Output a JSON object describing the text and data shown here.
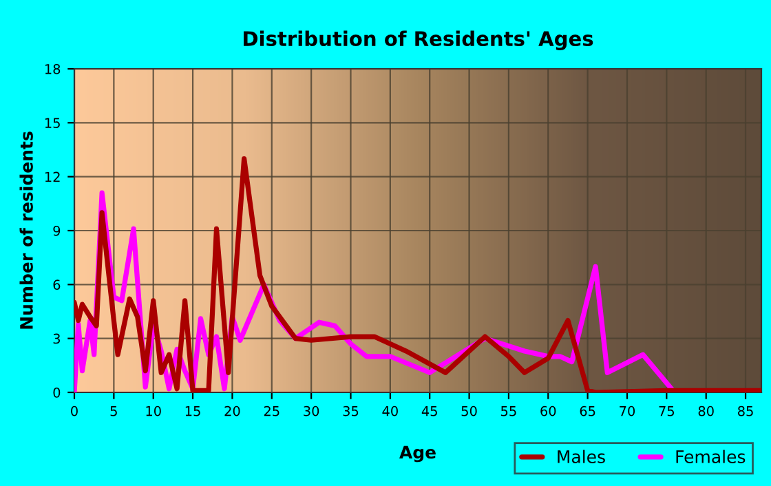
{
  "chart_data": {
    "type": "line",
    "title": "Distribution of Residents' Ages",
    "xlabel": "Age",
    "ylabel": "Number of residents",
    "x": [
      0,
      0.5,
      1,
      2,
      2.8,
      3.5,
      5,
      5.5,
      7,
      8,
      9,
      10,
      11,
      12,
      13,
      14,
      15,
      16,
      17,
      18,
      19.5,
      21.5,
      23.5,
      25,
      28,
      30,
      35,
      38,
      42,
      47,
      52,
      55,
      57,
      60,
      62.5,
      65,
      66,
      75,
      85,
      87
    ],
    "series": [
      {
        "name": "Males",
        "color": "#aa0000",
        "values": [
          5,
          4,
          4.9,
          4.2,
          3.7,
          10,
          4,
          2.1,
          5.2,
          4.2,
          1.2,
          5.1,
          1.1,
          2.1,
          0.2,
          5.1,
          0.1,
          0.1,
          0.1,
          9.1,
          1.1,
          13,
          6.5,
          4.8,
          3,
          2.9,
          3.1,
          3.1,
          2.3,
          1.1,
          3.1,
          2,
          1.1,
          1.9,
          4,
          0.1,
          0,
          0.1,
          0.1,
          0.1
        ]
      },
      {
        "name": "Females",
        "color": "#ff00ff",
        "x": [
          0,
          0.5,
          1,
          2,
          2.5,
          3.5,
          5,
          6,
          7.5,
          9,
          10,
          11,
          12,
          13,
          14,
          15,
          16,
          17,
          18,
          19,
          20,
          21,
          24,
          26,
          28,
          31,
          33,
          35,
          37,
          40,
          45,
          52,
          57,
          60,
          61.5,
          63,
          66,
          67.5,
          72,
          76
        ],
        "values": [
          0,
          3.8,
          1.2,
          4,
          2.1,
          11.1,
          5.3,
          5.1,
          9.1,
          0.3,
          3.8,
          2.3,
          0.2,
          2.4,
          1.2,
          0.2,
          4.1,
          2.1,
          3.1,
          0.2,
          4.2,
          2.9,
          6,
          4,
          3,
          3.9,
          3.7,
          2.7,
          2,
          2,
          1.1,
          3,
          2.3,
          2,
          2,
          1.7,
          7,
          1.1,
          2.1,
          0
        ]
      }
    ],
    "xlim": [
      0,
      87
    ],
    "xticks": [
      0,
      5,
      10,
      15,
      20,
      25,
      30,
      35,
      40,
      45,
      50,
      55,
      60,
      65,
      70,
      75,
      80,
      85
    ],
    "ylim": [
      0,
      18
    ],
    "yticks": [
      0,
      3,
      6,
      9,
      12,
      15,
      18
    ],
    "grid": true,
    "legend": "bottom right",
    "line_style": "solid",
    "marker": "none"
  }
}
